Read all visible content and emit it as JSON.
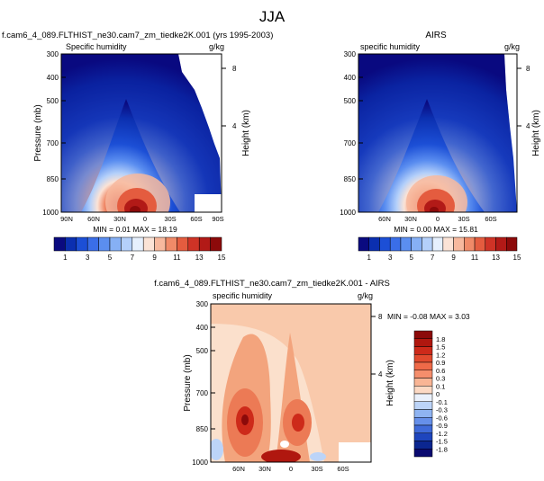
{
  "page_title": "JJA",
  "panel_top_left": {
    "title": "f.cam6_4_089.FLTHIST_ne30.cam7_zm_tiedke2K.001 (yrs 1995-2003)",
    "left_label": "Specific humidity",
    "right_label": "g/kg",
    "ylabel": "Pressure (mb)",
    "ylabel_right": "Height (km)",
    "stats": "MIN =  0.01  MAX = 18.19",
    "x_ticks": [
      "90N",
      "60N",
      "30N",
      "0",
      "30S",
      "60S",
      "90S"
    ]
  },
  "panel_top_right": {
    "title": "AIRS",
    "left_label": "specific humidity",
    "right_label": "g/kg",
    "ylabel_right": "Height (km)",
    "stats": "MIN =  0.00  MAX = 15.81",
    "x_ticks": [
      "60N",
      "30N",
      "0",
      "30S",
      "60S"
    ]
  },
  "panel_bottom": {
    "title": "f.cam6_4_089.FLTHIST_ne30.cam7_zm_tiedke2K.001 - AIRS",
    "left_label": "specific humidity",
    "right_label": "g/kg",
    "ylabel": "Pressure (mb)",
    "ylabel_right": "Height (km)",
    "stats": "MIN = -0.08  MAX =  3.03",
    "x_ticks": [
      "60N",
      "30N",
      "0",
      "30S",
      "60S"
    ]
  },
  "colorbar_horizontal": {
    "labels": [
      "1",
      "3",
      "5",
      "7",
      "9",
      "11",
      "13",
      "15"
    ],
    "colors": [
      "#0a0a80",
      "#0b2fb0",
      "#1c4fd6",
      "#3a6ee8",
      "#5b8ef0",
      "#86b0f5",
      "#b4d0fa",
      "#e6f0fd",
      "#fbe3d6",
      "#f7b99e",
      "#f08a68",
      "#e45c3f",
      "#cf3326",
      "#b21a17",
      "#8c0a0a"
    ]
  },
  "colorbar_vertical": {
    "labels": [
      "1.8",
      "1.5",
      "1.2",
      "0.9",
      "0.6",
      "0.3",
      "0.1",
      "0",
      "-0.1",
      "-0.3",
      "-0.6",
      "-0.9",
      "-1.2",
      "-1.5",
      "-1.8"
    ],
    "colors": [
      "#8c0a0a",
      "#b0170f",
      "#cd2a1a",
      "#e14a2e",
      "#ef6a48",
      "#f58e6c",
      "#f9b595",
      "#fcd9c4",
      "#eaf1fc",
      "#bcd4f8",
      "#8fb4f2",
      "#6690ea",
      "#3f6ad9",
      "#1e45bd",
      "#0b2690",
      "#0a0a70"
    ]
  },
  "pressure_ticks": [
    "300",
    "400",
    "500",
    "700",
    "850",
    "1000"
  ],
  "height_ticks": [
    "8",
    "4"
  ],
  "chart_data": [
    {
      "type": "heatmap",
      "title": "f.cam6_4_089.FLTHIST_ne30.cam7_zm_tiedke2K.001 (yrs 1995-2003)",
      "variable": "Specific humidity",
      "units": "g/kg",
      "x": [
        "90N",
        "60N",
        "30N",
        "0",
        "30S",
        "60S",
        "90S"
      ],
      "ylabel": "Pressure (mb)",
      "y": [
        300,
        400,
        500,
        700,
        850,
        1000
      ],
      "min": 0.01,
      "max": 18.19
    },
    {
      "type": "heatmap",
      "title": "AIRS",
      "variable": "specific humidity",
      "units": "g/kg",
      "x": [
        "60N",
        "30N",
        "0",
        "30S",
        "60S"
      ],
      "y": [
        300,
        400,
        500,
        700,
        850,
        1000
      ],
      "min": 0.0,
      "max": 15.81
    },
    {
      "type": "heatmap",
      "title": "f.cam6_4_089.FLTHIST_ne30.cam7_zm_tiedke2K.001 - AIRS",
      "variable": "specific humidity",
      "units": "g/kg",
      "x": [
        "60N",
        "30N",
        "0",
        "30S",
        "60S"
      ],
      "ylabel": "Pressure (mb)",
      "y": [
        300,
        400,
        500,
        700,
        850,
        1000
      ],
      "min": -0.08,
      "max": 3.03
    }
  ]
}
